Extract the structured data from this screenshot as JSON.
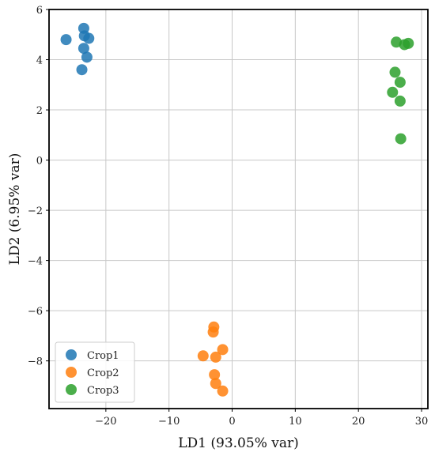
{
  "chart_data": {
    "type": "scatter",
    "xlabel": "LD1 (93.05% var)",
    "ylabel": "LD2 (6.95% var)",
    "xlim": [
      -29,
      31
    ],
    "ylim": [
      -9.9,
      6
    ],
    "xticks": [
      -20,
      -10,
      0,
      10,
      20,
      30
    ],
    "yticks": [
      -8,
      -6,
      -4,
      -2,
      0,
      2,
      4,
      6
    ],
    "grid": true,
    "legend_position": "lower-left",
    "series": [
      {
        "name": "Crop1",
        "color": "#1f77b4",
        "points": [
          {
            "x": -26.3,
            "y": 4.8
          },
          {
            "x": -23.5,
            "y": 5.25
          },
          {
            "x": -23.4,
            "y": 4.95
          },
          {
            "x": -22.7,
            "y": 4.85
          },
          {
            "x": -23.5,
            "y": 4.45
          },
          {
            "x": -23.0,
            "y": 4.1
          },
          {
            "x": -23.8,
            "y": 3.6
          }
        ]
      },
      {
        "name": "Crop2",
        "color": "#ff7f0e",
        "points": [
          {
            "x": -2.9,
            "y": -6.65
          },
          {
            "x": -3.0,
            "y": -6.85
          },
          {
            "x": -1.5,
            "y": -7.55
          },
          {
            "x": -4.6,
            "y": -7.8
          },
          {
            "x": -2.6,
            "y": -7.85
          },
          {
            "x": -2.8,
            "y": -8.55
          },
          {
            "x": -2.6,
            "y": -8.9
          },
          {
            "x": -1.5,
            "y": -9.2
          }
        ]
      },
      {
        "name": "Crop3",
        "color": "#2ca02c",
        "points": [
          {
            "x": 26.0,
            "y": 4.7
          },
          {
            "x": 27.3,
            "y": 4.6
          },
          {
            "x": 27.9,
            "y": 4.65
          },
          {
            "x": 25.8,
            "y": 3.5
          },
          {
            "x": 26.6,
            "y": 3.1
          },
          {
            "x": 25.4,
            "y": 2.7
          },
          {
            "x": 26.6,
            "y": 2.35
          },
          {
            "x": 26.7,
            "y": 0.85
          }
        ]
      }
    ]
  }
}
